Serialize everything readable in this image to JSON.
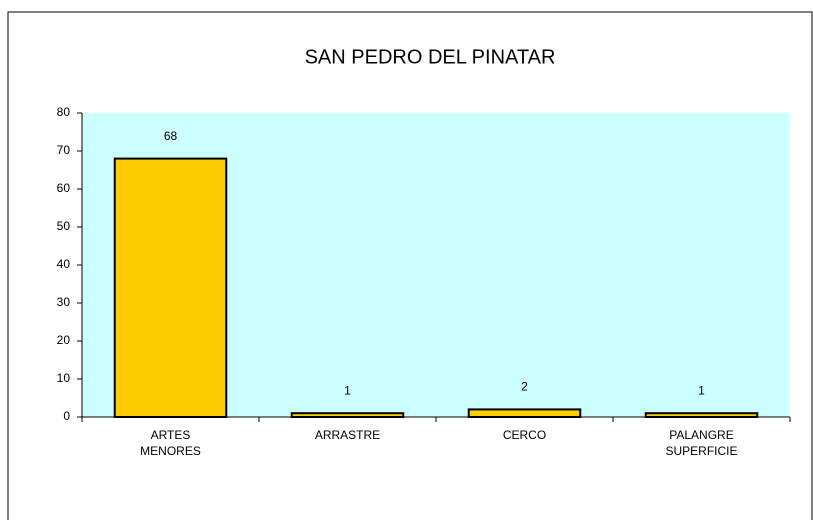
{
  "chart_data": {
    "type": "bar",
    "title": "SAN PEDRO  DEL PINATAR",
    "categories": [
      "ARTES MENORES",
      "ARRASTRE",
      "CERCO",
      "PALANGRE SUPERFICIE"
    ],
    "values": [
      68,
      1,
      2,
      1
    ],
    "color": "#ffcc00",
    "plot_background": "#ccffff",
    "ylim": [
      0,
      80
    ],
    "yticks": [
      0,
      10,
      20,
      30,
      40,
      50,
      60,
      70,
      80
    ],
    "grid": false
  }
}
